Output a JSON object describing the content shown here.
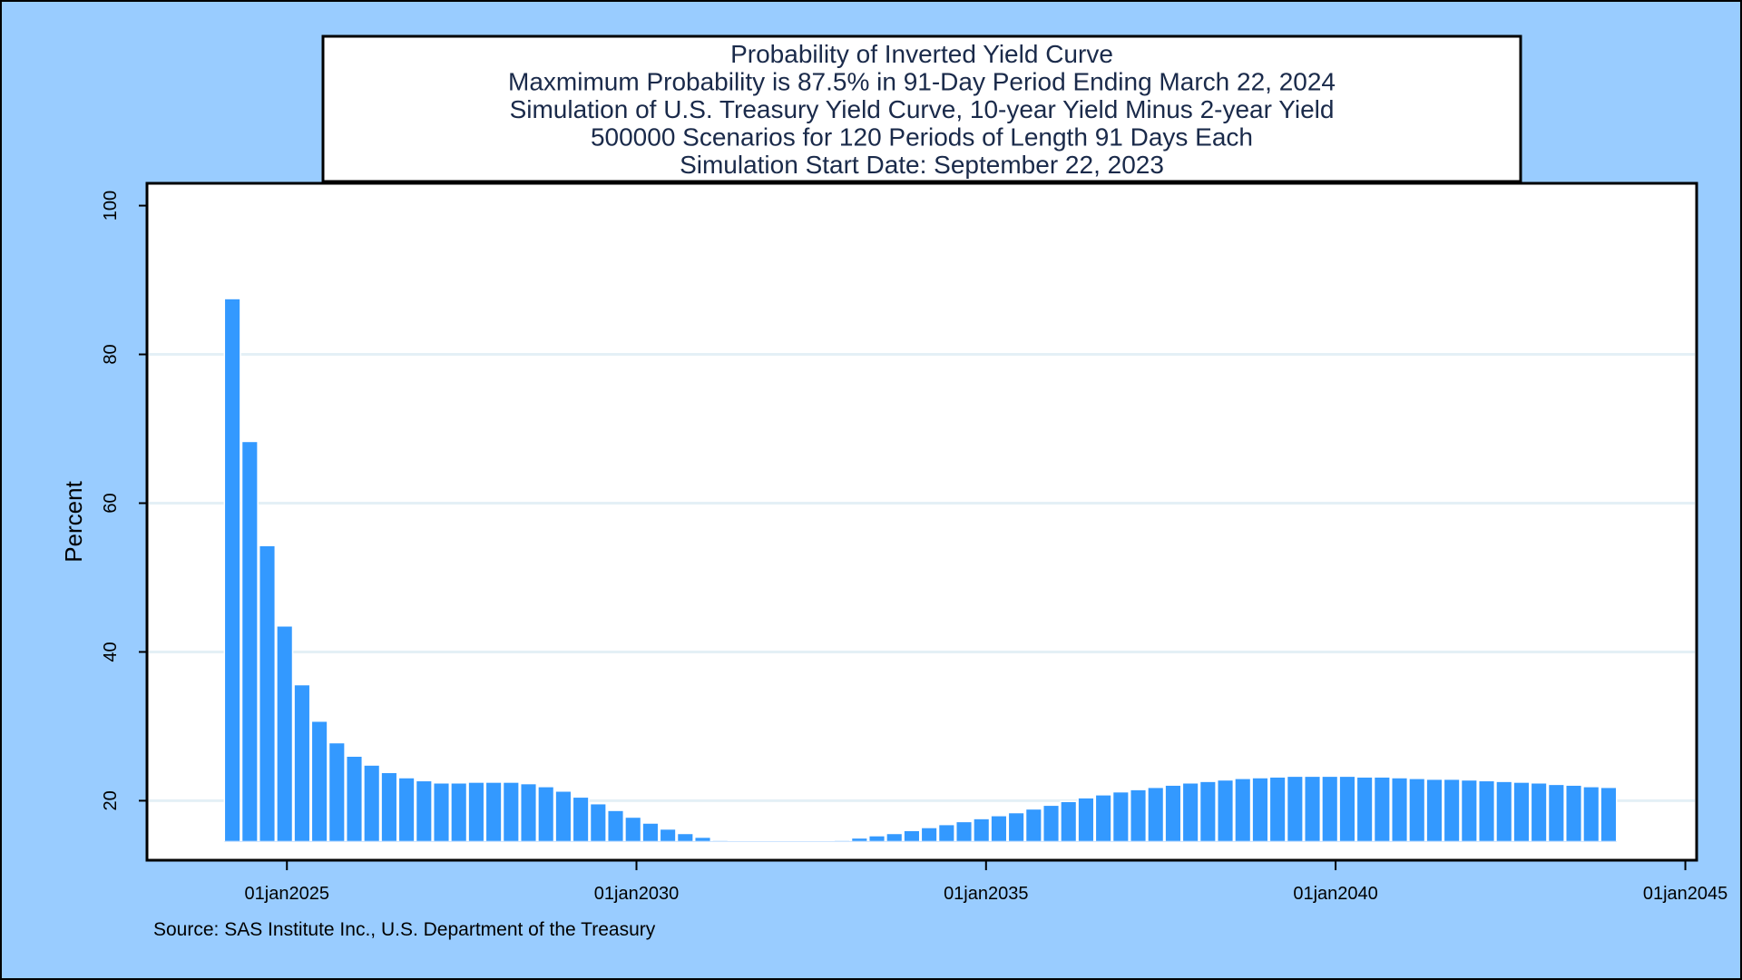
{
  "chart_data": {
    "type": "bar",
    "title_lines": [
      "Probability of Inverted Yield Curve",
      "Maxmimum Probability is 87.5% in 91-Day Period Ending March 22, 2024",
      "Simulation of U.S. Treasury Yield Curve, 10-year Yield Minus 2-year Yield",
      "500000 Scenarios for 120 Periods of Length 91 Days Each",
      "Simulation Start Date: September 22, 2023"
    ],
    "ylabel": "Percent",
    "ylim": [
      12,
      103
    ],
    "yticks": [
      20,
      40,
      60,
      80,
      100
    ],
    "xlim": [
      "2023-01-01",
      "2045-03-01"
    ],
    "xticks": [
      {
        "date": "2025-01-01",
        "label": "01jan2025"
      },
      {
        "date": "2030-01-01",
        "label": "01jan2030"
      },
      {
        "date": "2035-01-01",
        "label": "01jan2035"
      },
      {
        "date": "2040-01-01",
        "label": "01jan2040"
      },
      {
        "date": "2045-01-01",
        "label": "01jan2045"
      }
    ],
    "grid": "horizontal",
    "bar_color": "#3399ff",
    "bar_outline": "#ffffff",
    "bars": [
      {
        "date": "2024-03-22",
        "value": 87.5
      },
      {
        "date": "2024-06-21",
        "value": 68.3
      },
      {
        "date": "2024-09-20",
        "value": 54.3
      },
      {
        "date": "2024-12-20",
        "value": 43.5
      },
      {
        "date": "2025-03-21",
        "value": 35.6
      },
      {
        "date": "2025-06-20",
        "value": 30.7
      },
      {
        "date": "2025-09-19",
        "value": 27.8
      },
      {
        "date": "2025-12-19",
        "value": 26.0
      },
      {
        "date": "2026-03-20",
        "value": 24.8
      },
      {
        "date": "2026-06-19",
        "value": 23.8
      },
      {
        "date": "2026-09-18",
        "value": 23.1
      },
      {
        "date": "2026-12-18",
        "value": 22.7
      },
      {
        "date": "2027-03-19",
        "value": 22.4
      },
      {
        "date": "2027-06-18",
        "value": 22.4
      },
      {
        "date": "2027-09-17",
        "value": 22.5
      },
      {
        "date": "2027-12-17",
        "value": 22.5
      },
      {
        "date": "2028-03-17",
        "value": 22.5
      },
      {
        "date": "2028-06-16",
        "value": 22.3
      },
      {
        "date": "2028-09-15",
        "value": 21.9
      },
      {
        "date": "2028-12-15",
        "value": 21.3
      },
      {
        "date": "2029-03-16",
        "value": 20.5
      },
      {
        "date": "2029-06-15",
        "value": 19.6
      },
      {
        "date": "2029-09-14",
        "value": 18.7
      },
      {
        "date": "2029-12-14",
        "value": 17.8
      },
      {
        "date": "2030-03-15",
        "value": 17.0
      },
      {
        "date": "2030-06-14",
        "value": 16.2
      },
      {
        "date": "2030-09-13",
        "value": 15.6
      },
      {
        "date": "2030-12-13",
        "value": 15.1
      },
      {
        "date": "2031-03-14",
        "value": 14.7
      },
      {
        "date": "2031-06-13",
        "value": 14.4
      },
      {
        "date": "2031-09-12",
        "value": 14.2
      },
      {
        "date": "2031-12-12",
        "value": 14.1
      },
      {
        "date": "2032-03-12",
        "value": 14.1
      },
      {
        "date": "2032-06-11",
        "value": 14.2
      },
      {
        "date": "2032-09-10",
        "value": 14.4
      },
      {
        "date": "2032-12-10",
        "value": 14.7
      },
      {
        "date": "2033-03-11",
        "value": 15.0
      },
      {
        "date": "2033-06-10",
        "value": 15.3
      },
      {
        "date": "2033-09-09",
        "value": 15.6
      },
      {
        "date": "2033-12-09",
        "value": 16.0
      },
      {
        "date": "2034-03-10",
        "value": 16.4
      },
      {
        "date": "2034-06-09",
        "value": 16.8
      },
      {
        "date": "2034-09-08",
        "value": 17.2
      },
      {
        "date": "2034-12-08",
        "value": 17.6
      },
      {
        "date": "2035-03-09",
        "value": 18.0
      },
      {
        "date": "2035-06-08",
        "value": 18.4
      },
      {
        "date": "2035-09-07",
        "value": 18.9
      },
      {
        "date": "2035-12-07",
        "value": 19.4
      },
      {
        "date": "2036-03-07",
        "value": 19.9
      },
      {
        "date": "2036-06-06",
        "value": 20.4
      },
      {
        "date": "2036-09-05",
        "value": 20.8
      },
      {
        "date": "2036-12-05",
        "value": 21.2
      },
      {
        "date": "2037-03-06",
        "value": 21.5
      },
      {
        "date": "2037-06-05",
        "value": 21.8
      },
      {
        "date": "2037-09-04",
        "value": 22.1
      },
      {
        "date": "2037-12-04",
        "value": 22.4
      },
      {
        "date": "2038-03-05",
        "value": 22.6
      },
      {
        "date": "2038-06-04",
        "value": 22.8
      },
      {
        "date": "2038-09-03",
        "value": 23.0
      },
      {
        "date": "2038-12-03",
        "value": 23.1
      },
      {
        "date": "2039-03-04",
        "value": 23.2
      },
      {
        "date": "2039-06-03",
        "value": 23.3
      },
      {
        "date": "2039-09-02",
        "value": 23.3
      },
      {
        "date": "2039-12-02",
        "value": 23.3
      },
      {
        "date": "2040-03-02",
        "value": 23.3
      },
      {
        "date": "2040-06-01",
        "value": 23.2
      },
      {
        "date": "2040-08-31",
        "value": 23.2
      },
      {
        "date": "2040-11-30",
        "value": 23.1
      },
      {
        "date": "2041-03-01",
        "value": 23.0
      },
      {
        "date": "2041-05-31",
        "value": 22.9
      },
      {
        "date": "2041-08-30",
        "value": 22.9
      },
      {
        "date": "2041-11-29",
        "value": 22.8
      },
      {
        "date": "2042-02-28",
        "value": 22.7
      },
      {
        "date": "2042-05-30",
        "value": 22.6
      },
      {
        "date": "2042-08-29",
        "value": 22.5
      },
      {
        "date": "2042-11-28",
        "value": 22.4
      },
      {
        "date": "2043-02-27",
        "value": 22.2
      },
      {
        "date": "2043-05-29",
        "value": 22.1
      },
      {
        "date": "2043-08-28",
        "value": 21.9
      },
      {
        "date": "2043-11-27",
        "value": 21.8
      }
    ]
  },
  "footnote": "Source: SAS Institute Inc., U.S. Department of the Treasury"
}
